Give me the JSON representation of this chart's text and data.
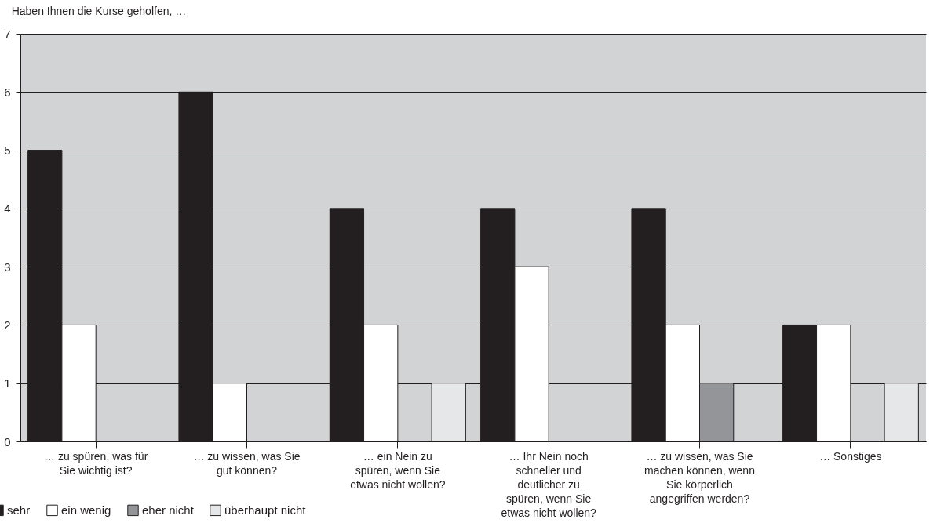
{
  "chart_data": {
    "type": "bar",
    "title": "Haben Ihnen die Kurse geholfen, …",
    "categories": [
      "… zu spüren, was für Sie wichtig ist?",
      "… zu wissen, was Sie gut können?",
      "… ein Nein zu spüren, wenn Sie etwas nicht wollen?",
      "… Ihr Nein noch schneller und deutlicher zu spüren, wenn Sie etwas nicht wollen?",
      "… zu wissen, was Sie machen können, wenn Sie körperlich angegriffen werden?",
      "… Sonstiges"
    ],
    "series": [
      {
        "name": "sehr",
        "color": "#231f20",
        "values": [
          5,
          6,
          4,
          4,
          4,
          2
        ]
      },
      {
        "name": "ein wenig",
        "color": "#ffffff",
        "values": [
          2,
          1,
          2,
          3,
          2,
          2
        ]
      },
      {
        "name": "eher nicht",
        "color": "#939598",
        "values": [
          null,
          null,
          null,
          null,
          1,
          null
        ]
      },
      {
        "name": "überhaupt nicht",
        "color": "#e6e7e8",
        "values": [
          null,
          null,
          1,
          null,
          null,
          1
        ]
      }
    ],
    "ylim": [
      0,
      7
    ],
    "yticks": [
      0,
      1,
      2,
      3,
      4,
      5,
      6,
      7
    ],
    "grid": "y",
    "legend": "bottom left"
  }
}
